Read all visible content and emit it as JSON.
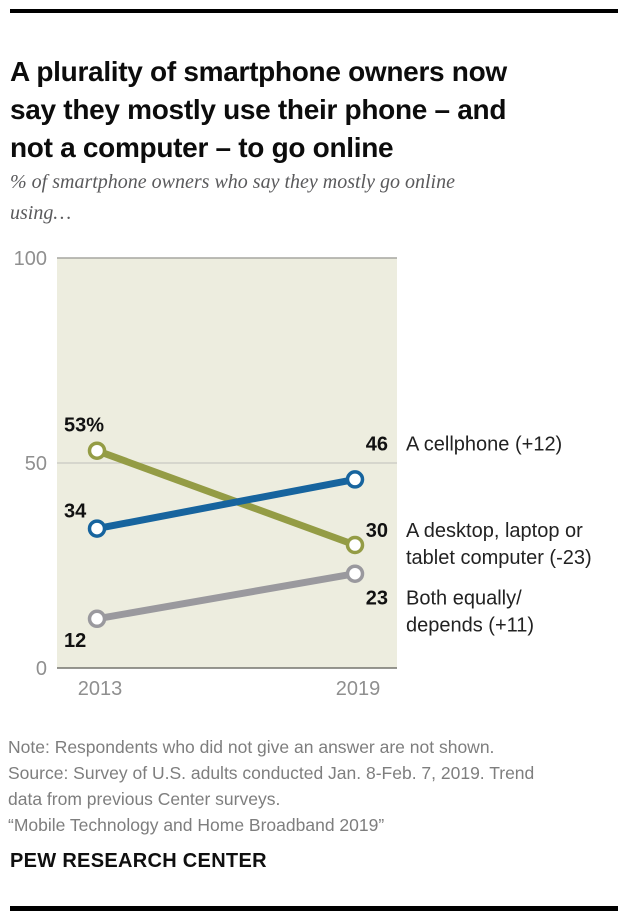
{
  "page": {
    "title": "A plurality of smartphone owners now\nsay they mostly use their phone – and\nnot a computer – to go online",
    "subtitle": "% of smartphone owners who say they mostly go online\nusing…",
    "notes": [
      "Note: Respondents who did not give an answer are not shown.",
      "Source: Survey of U.S. adults conducted Jan. 8-Feb. 7, 2019. Trend\ndata from previous Center surveys.",
      "“Mobile Technology and Home Broadband 2019”"
    ],
    "footer": "PEW RESEARCH CENTER"
  },
  "chart_data": {
    "type": "line",
    "subtype": "slopegraph",
    "categories": [
      "2013",
      "2019"
    ],
    "series": [
      {
        "name": "A cellphone",
        "legend": "A cellphone (+12)",
        "values": [
          34,
          46
        ],
        "change": "+12",
        "color": "#17649e",
        "start_label": "34",
        "end_label": "46"
      },
      {
        "name": "A desktop, laptop or tablet computer",
        "legend": "A desktop, laptop or\ntablet computer (-23)",
        "values": [
          53,
          30
        ],
        "change": "-23",
        "color": "#949c45",
        "start_label": "53%",
        "end_label": "30"
      },
      {
        "name": "Both equally/depends",
        "legend": "Both equally/\ndepends (+11)",
        "values": [
          12,
          23
        ],
        "change": "+11",
        "color": "#9a999e",
        "start_label": "12",
        "end_label": "23"
      }
    ],
    "ylim": [
      0,
      100
    ],
    "yticks": [
      0,
      50,
      100
    ],
    "grid": true,
    "legend_position": "right",
    "plot_bg": "#ededе3",
    "plot_bg_hex": "#ededdf",
    "tick_color": "#8f8f8f",
    "value_label_color": "#111111",
    "legend_text_color": "#222222"
  }
}
